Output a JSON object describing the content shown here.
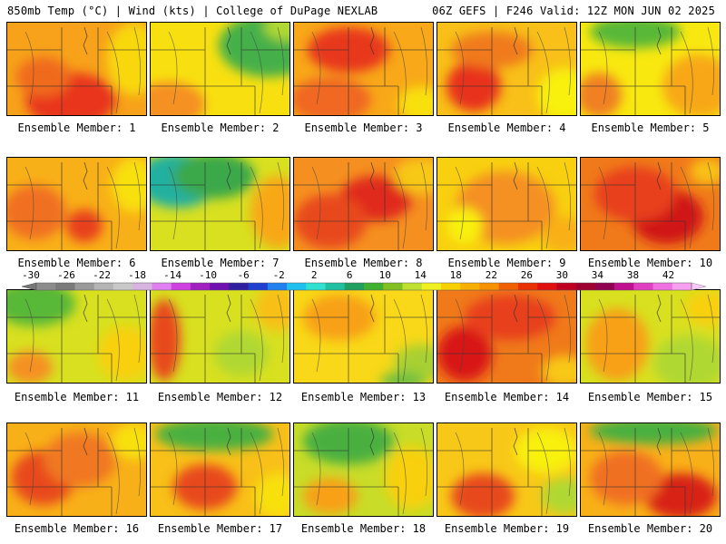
{
  "header": {
    "left": "850mb Temp (°C) | Wind (kts) | College of DuPage NEXLAB",
    "right": "06Z GEFS | F246 Valid: 12Z MON JUN 02 2025"
  },
  "colorbar": {
    "tick_labels": [
      "-30",
      "-26",
      "-22",
      "-18",
      "-14",
      "-10",
      "-6",
      "-2",
      "2",
      "6",
      "10",
      "14",
      "18",
      "22",
      "26",
      "30",
      "34",
      "38",
      "42"
    ],
    "colors": [
      "#8c8c8c",
      "#7a7a7a",
      "#9a9a9a",
      "#b4b4b4",
      "#c8c8c8",
      "#d8b4e0",
      "#e080f0",
      "#d040e0",
      "#a020c0",
      "#7010b0",
      "#3020a0",
      "#2040d0",
      "#2080f0",
      "#20c0f0",
      "#30e0d0",
      "#20c0a0",
      "#20a060",
      "#40b030",
      "#80c020",
      "#c0e030",
      "#f0f020",
      "#f8d000",
      "#f8b000",
      "#f89000",
      "#f06000",
      "#e83000",
      "#e01010",
      "#c00020",
      "#a00030",
      "#900050",
      "#c01090",
      "#e040c0",
      "#f070e0",
      "#f8a0f0"
    ]
  },
  "panels": [
    {
      "label": "Ensemble Member: 1",
      "base": "#f7a21a",
      "blobs": [
        {
          "c": "#e8361a"
        },
        {
          "c": "#f06a1a"
        },
        {
          "c": "#f8d810"
        }
      ]
    },
    {
      "label": "Ensemble Member: 2",
      "base": "#f8e010",
      "blobs": [
        {
          "c": "#44b048"
        },
        {
          "c": "#f59020"
        },
        {
          "c": "#b0d830"
        }
      ]
    },
    {
      "label": "Ensemble Member: 3",
      "base": "#f8a818",
      "blobs": [
        {
          "c": "#e8381a"
        },
        {
          "c": "#f06820"
        },
        {
          "c": "#f8e010"
        }
      ]
    },
    {
      "label": "Ensemble Member: 4",
      "base": "#f8c018",
      "blobs": [
        {
          "c": "#e8301a"
        },
        {
          "c": "#f07a1a"
        },
        {
          "c": "#f8f010"
        }
      ]
    },
    {
      "label": "Ensemble Member: 5",
      "base": "#f8e810",
      "blobs": [
        {
          "c": "#58b838"
        },
        {
          "c": "#f8a818"
        },
        {
          "c": "#f08020"
        }
      ]
    },
    {
      "label": "Ensemble Member: 6",
      "base": "#f8b018",
      "blobs": [
        {
          "c": "#e8401a"
        },
        {
          "c": "#f07020"
        },
        {
          "c": "#f8e010"
        }
      ]
    },
    {
      "label": "Ensemble Member: 7",
      "base": "#d8e020",
      "blobs": [
        {
          "c": "#20b0a0"
        },
        {
          "c": "#3aa848"
        },
        {
          "c": "#f8a818"
        }
      ]
    },
    {
      "label": "Ensemble Member: 8",
      "base": "#f59020",
      "blobs": [
        {
          "c": "#e02a1a"
        },
        {
          "c": "#e8481a"
        },
        {
          "c": "#f8c818"
        }
      ]
    },
    {
      "label": "Ensemble Member: 9",
      "base": "#f8d010",
      "blobs": [
        {
          "c": "#f59020"
        },
        {
          "c": "#f8f010"
        },
        {
          "c": "#f8b018"
        }
      ]
    },
    {
      "label": "Ensemble Member: 10",
      "base": "#f07a1a",
      "blobs": [
        {
          "c": "#d01818"
        },
        {
          "c": "#e8401a"
        },
        {
          "c": "#f8c018"
        }
      ]
    },
    {
      "label": "Ensemble Member: 11",
      "base": "#d8e020",
      "blobs": [
        {
          "c": "#58b838"
        },
        {
          "c": "#f8d010"
        },
        {
          "c": "#f59020"
        }
      ]
    },
    {
      "label": "Ensemble Member: 12",
      "base": "#d8e020",
      "blobs": [
        {
          "c": "#e8481a"
        },
        {
          "c": "#b0d830"
        },
        {
          "c": "#f8c018"
        }
      ]
    },
    {
      "label": "Ensemble Member: 13",
      "base": "#f8d818",
      "blobs": [
        {
          "c": "#a8d030"
        },
        {
          "c": "#f8a018"
        },
        {
          "c": "#70c040"
        }
      ]
    },
    {
      "label": "Ensemble Member: 14",
      "base": "#f07a1a",
      "blobs": [
        {
          "c": "#d81818"
        },
        {
          "c": "#e8401a"
        },
        {
          "c": "#f8c818"
        }
      ]
    },
    {
      "label": "Ensemble Member: 15",
      "base": "#d8e020",
      "blobs": [
        {
          "c": "#f8a018"
        },
        {
          "c": "#b0d830"
        },
        {
          "c": "#f8d010"
        }
      ]
    },
    {
      "label": "Ensemble Member: 16",
      "base": "#f8b018",
      "blobs": [
        {
          "c": "#e8481a"
        },
        {
          "c": "#f8e010"
        },
        {
          "c": "#f07820"
        }
      ]
    },
    {
      "label": "Ensemble Member: 17",
      "base": "#f8c018",
      "blobs": [
        {
          "c": "#48b040"
        },
        {
          "c": "#e8481a"
        },
        {
          "c": "#f8e010"
        }
      ]
    },
    {
      "label": "Ensemble Member: 18",
      "base": "#c8dc28",
      "blobs": [
        {
          "c": "#48b040"
        },
        {
          "c": "#f8d010"
        },
        {
          "c": "#f8a018"
        }
      ]
    },
    {
      "label": "Ensemble Member: 19",
      "base": "#f8c818",
      "blobs": [
        {
          "c": "#e8481a"
        },
        {
          "c": "#f8f010"
        },
        {
          "c": "#b0d830"
        }
      ]
    },
    {
      "label": "Ensemble Member: 20",
      "base": "#f8b018",
      "blobs": [
        {
          "c": "#d82018"
        },
        {
          "c": "#48b040"
        },
        {
          "c": "#f07020"
        }
      ]
    }
  ]
}
